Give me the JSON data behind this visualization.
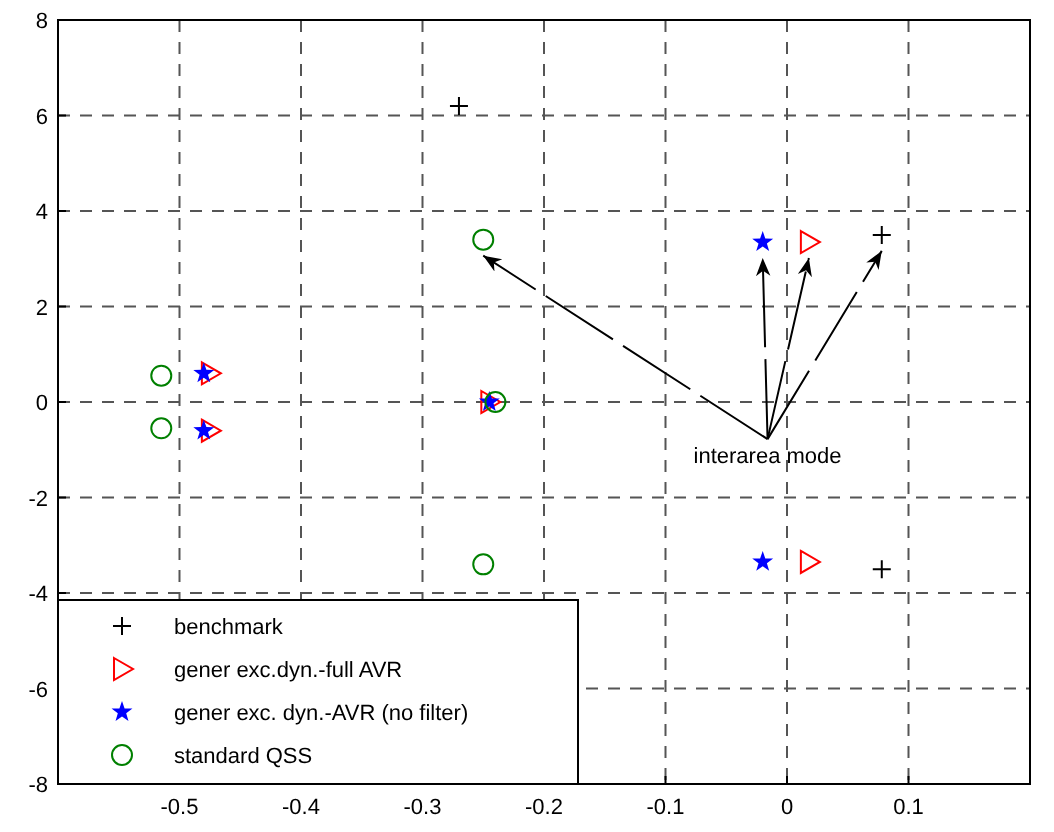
{
  "chart_data": {
    "type": "scatter",
    "xlim": [
      -0.6,
      0.2
    ],
    "ylim": [
      -8,
      8
    ],
    "xticks": [
      -0.5,
      -0.4,
      -0.3,
      -0.2,
      -0.1,
      0,
      0.1
    ],
    "yticks": [
      -8,
      -6,
      -4,
      -2,
      0,
      2,
      4,
      6,
      8
    ],
    "grid": true,
    "legend": "bottom left",
    "annotations": [
      {
        "text": "interarea mode",
        "x": 0.078,
        "y": 3.5
      }
    ],
    "series": [
      {
        "name": "benchmark",
        "color": "#000000",
        "marker": "cross",
        "x": [
          -0.27,
          0.078,
          0.078
        ],
        "values": [
          6.2,
          3.5,
          -3.5
        ]
      },
      {
        "name": "gener exc.dyn.-full AVR",
        "color": "#ff0000",
        "marker": "triangle",
        "x": [
          0.018,
          0.018,
          -0.475,
          -0.475,
          -0.245
        ],
        "values": [
          3.35,
          -3.35,
          0.6,
          -0.6,
          0
        ]
      },
      {
        "name": "gener exc. dyn.-AVR (no filter)",
        "color": "#0000ff",
        "marker": "star",
        "x": [
          -0.02,
          -0.02,
          -0.48,
          -0.48,
          -0.245
        ],
        "values": [
          3.35,
          -3.35,
          0.6,
          -0.6,
          0
        ]
      },
      {
        "name": "standard QSS",
        "color": "#008000",
        "marker": "circle",
        "x": [
          -0.25,
          -0.25,
          -0.515,
          -0.515,
          -0.24
        ],
        "values": [
          3.4,
          -3.4,
          0.55,
          -0.55,
          0
        ]
      }
    ]
  }
}
